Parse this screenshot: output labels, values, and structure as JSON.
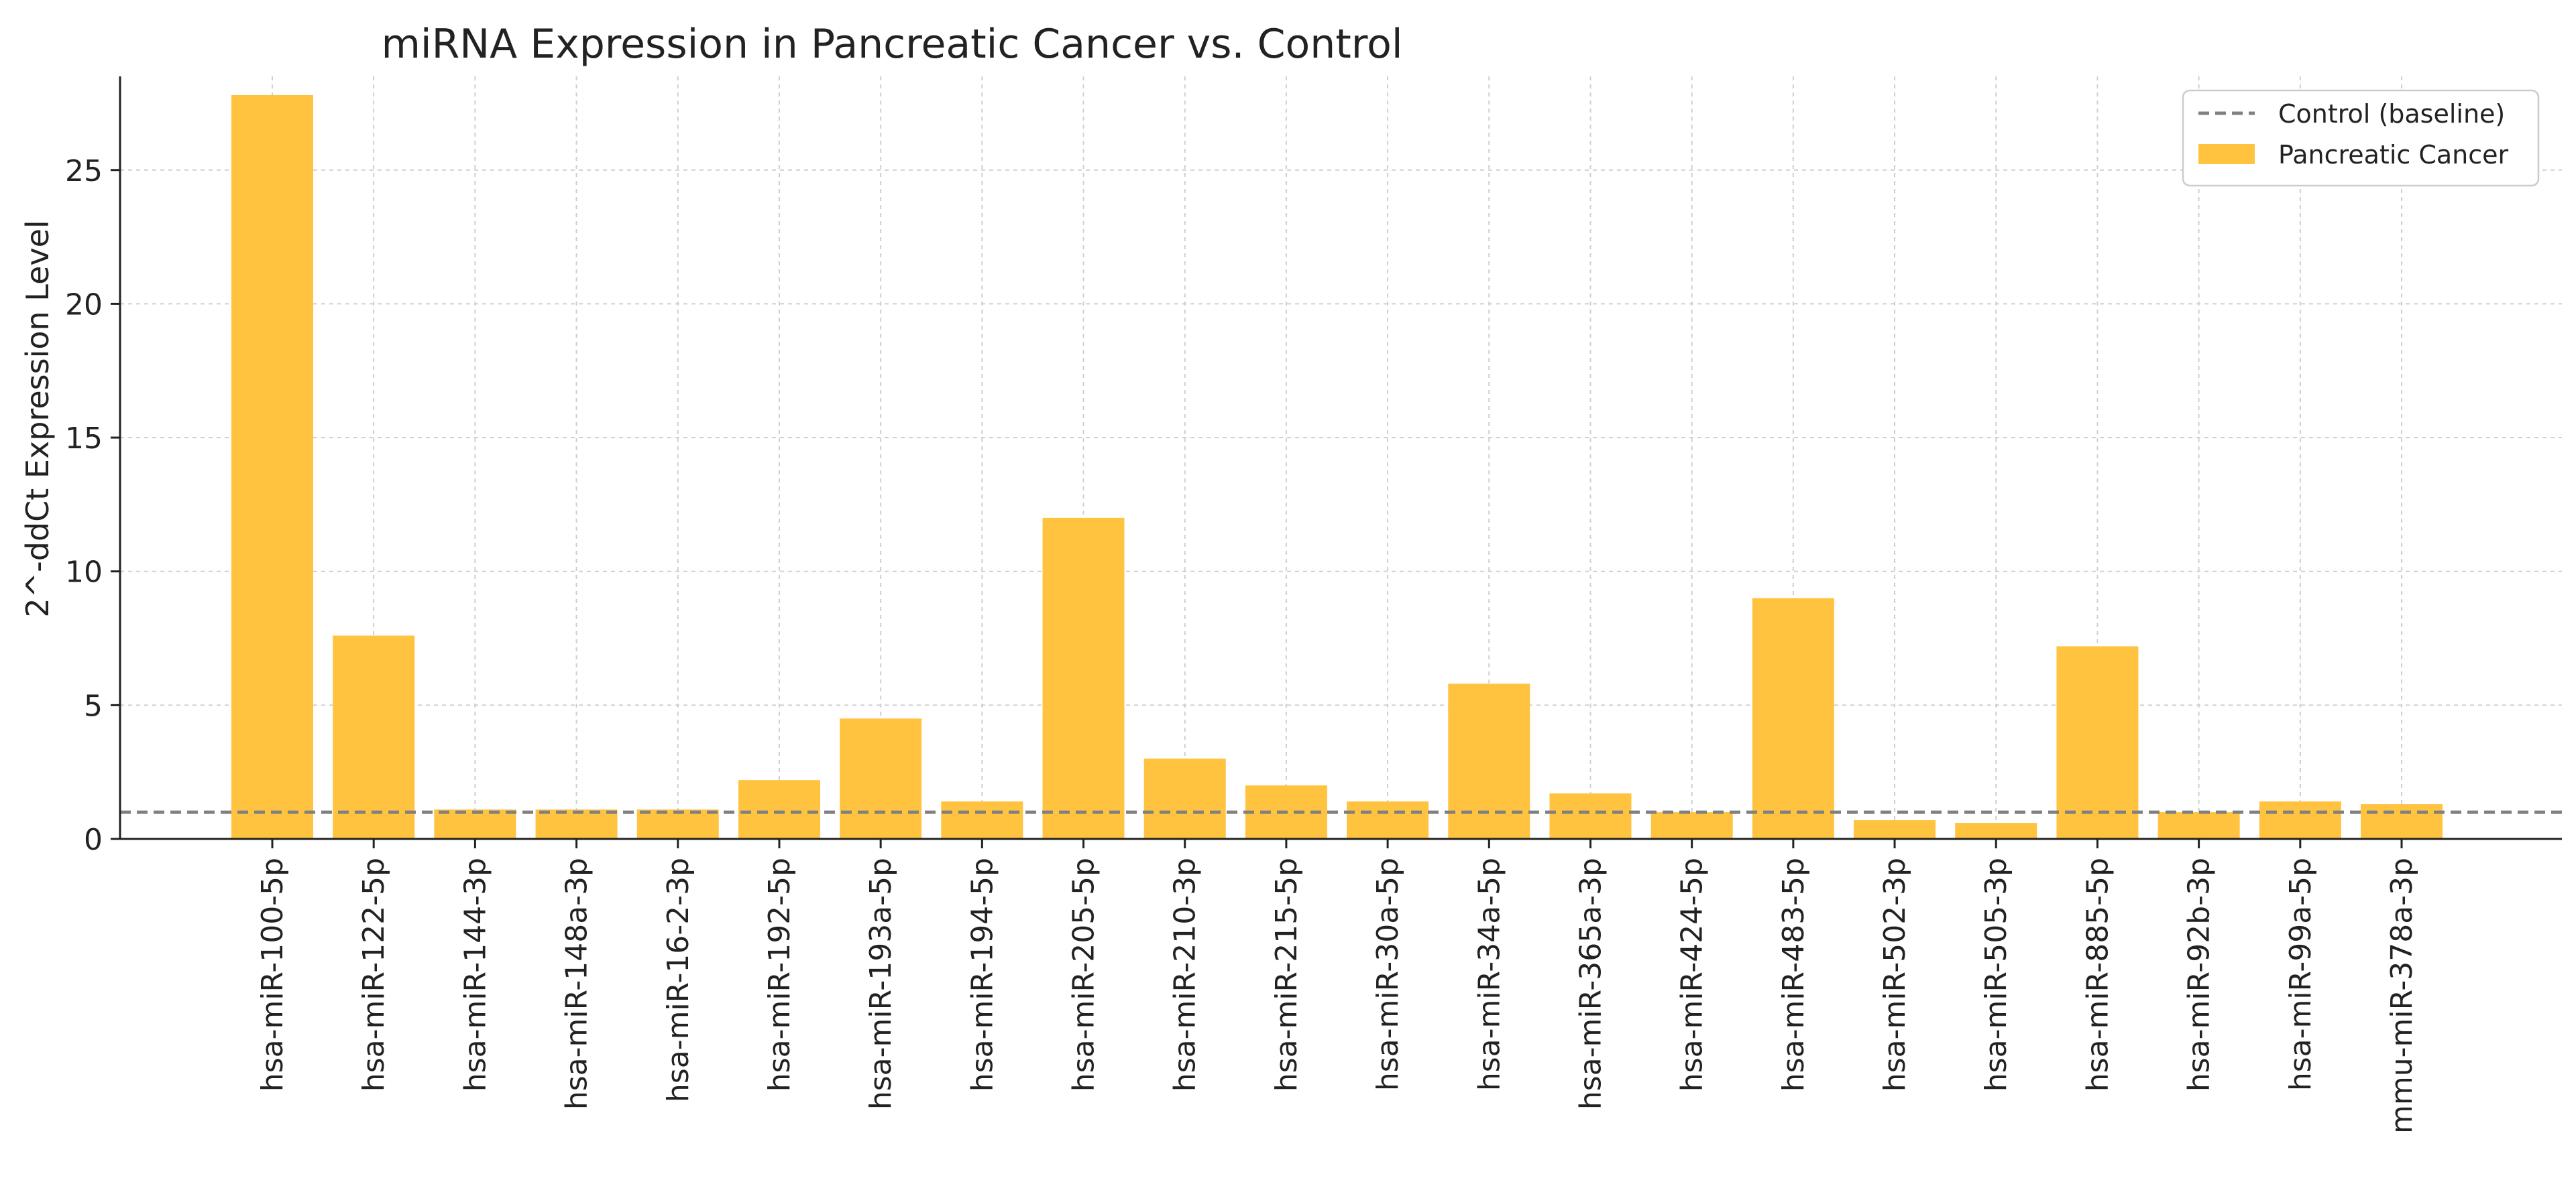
{
  "chart_data": {
    "type": "bar",
    "title": "miRNA Expression in Pancreatic Cancer vs. Control",
    "xlabel": "",
    "ylabel": "2^-ddCt Expression Level",
    "ylim": [
      0,
      28.5
    ],
    "yticks": [
      0,
      5,
      10,
      15,
      20,
      25
    ],
    "grid": true,
    "legend_position": "top-right",
    "categories": [
      "hsa-miR-100-5p",
      "hsa-miR-122-5p",
      "hsa-miR-144-3p",
      "hsa-miR-148a-3p",
      "hsa-miR-16-2-3p",
      "hsa-miR-192-5p",
      "hsa-miR-193a-5p",
      "hsa-miR-194-5p",
      "hsa-miR-205-5p",
      "hsa-miR-210-3p",
      "hsa-miR-215-5p",
      "hsa-miR-30a-5p",
      "hsa-miR-34a-5p",
      "hsa-miR-365a-3p",
      "hsa-miR-424-5p",
      "hsa-miR-483-5p",
      "hsa-miR-502-3p",
      "hsa-miR-505-3p",
      "hsa-miR-885-5p",
      "hsa-miR-92b-3p",
      "hsa-miR-99a-5p",
      "mmu-miR-378a-3p"
    ],
    "series": [
      {
        "name": "Pancreatic Cancer",
        "color": "#FFC33F",
        "values": [
          27.8,
          7.6,
          1.1,
          1.1,
          1.1,
          2.2,
          4.5,
          1.4,
          12.0,
          3.0,
          2.0,
          1.4,
          5.8,
          1.7,
          1.0,
          9.0,
          0.7,
          0.6,
          7.2,
          1.0,
          1.4,
          1.3
        ]
      }
    ],
    "baseline": {
      "name": "Control (baseline)",
      "value": 1.0,
      "color": "#808080"
    },
    "legend": [
      {
        "label": "Control (baseline)",
        "kind": "dashed-line",
        "color": "#808080"
      },
      {
        "label": "Pancreatic Cancer",
        "kind": "patch",
        "color": "#FFC33F"
      }
    ]
  }
}
